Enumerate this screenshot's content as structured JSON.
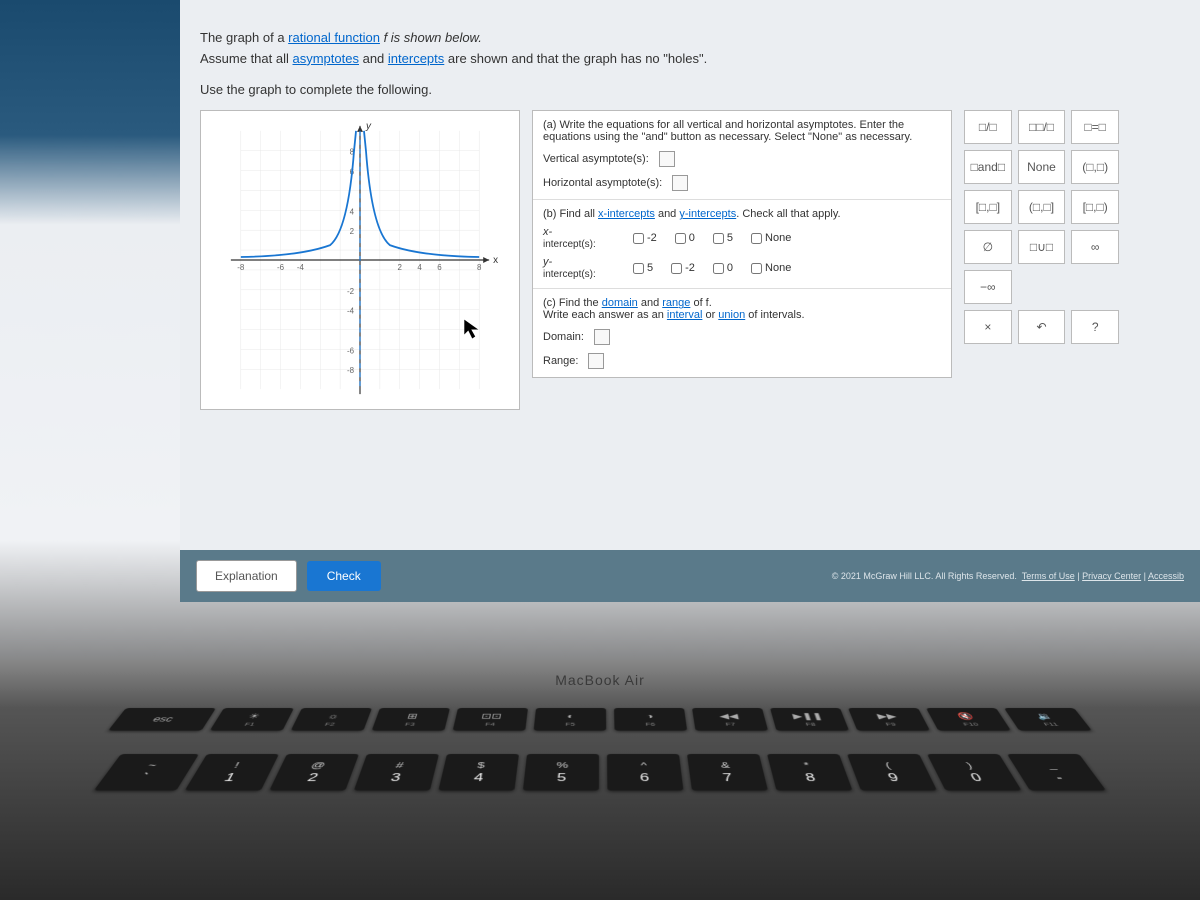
{
  "problem": {
    "line1_pre": "The graph of a ",
    "line1_link": "rational function",
    "line1_post": " f is shown below.",
    "line2_pre": "Assume that all ",
    "line2_link1": "asymptotes",
    "line2_mid": " and ",
    "line2_link2": "intercepts",
    "line2_post": " are shown and that the graph has no \"holes\".",
    "line3": "Use the graph to complete the following."
  },
  "graph": {
    "x_min": -8,
    "x_max": 8,
    "y_min": -8,
    "y_max": 8,
    "x_ticks": [
      -8,
      -6,
      -4,
      -2,
      2,
      4,
      6,
      8
    ],
    "y_ticks": [
      -8,
      -6,
      -4,
      -2,
      2,
      4,
      6,
      8
    ],
    "vertical_asymptote_x": 0,
    "horizontal_asymptote_y": 0,
    "curve_color": "#1976d2",
    "asymptote_color": "#1976d2",
    "grid_color": "#e0e0e0",
    "axis_color": "#333"
  },
  "questions": {
    "a": {
      "prompt": "Write the equations for all vertical and horizontal asymptotes. Enter the equations using the \"and\" button as necessary. Select \"None\" as necessary.",
      "vert_label": "Vertical asymptote(s):",
      "horiz_label": "Horizontal asymptote(s):"
    },
    "b": {
      "prompt_pre": "Find all ",
      "prompt_link1": "x-intercepts",
      "prompt_mid": " and ",
      "prompt_link2": "y-intercepts",
      "prompt_post": ". Check all that apply.",
      "x_label_top": "x-",
      "x_label_bot": "intercept(s):",
      "y_label_top": "y-",
      "y_label_bot": "intercept(s):",
      "x_opts": [
        "-2",
        "0",
        "5",
        "None"
      ],
      "y_opts": [
        "5",
        "-2",
        "0",
        "None"
      ]
    },
    "c": {
      "prompt_pre": "Find the ",
      "prompt_link1": "domain",
      "prompt_mid1": " and ",
      "prompt_link2": "range",
      "prompt_mid2": " of f.",
      "prompt_line2_pre": "Write each answer as an ",
      "prompt_link3": "interval",
      "prompt_mid3": " or ",
      "prompt_link4": "union",
      "prompt_post": " of intervals.",
      "domain_label": "Domain:",
      "range_label": "Range:"
    }
  },
  "palette": {
    "items": [
      {
        "label": "□/□",
        "name": "fraction"
      },
      {
        "label": "□□/□",
        "name": "mixed-fraction"
      },
      {
        "label": "□=□",
        "name": "equation"
      },
      {
        "label": "□and□",
        "name": "and"
      },
      {
        "label": "None",
        "name": "none"
      },
      {
        "label": "(□,□)",
        "name": "open-interval"
      },
      {
        "label": "[□,□]",
        "name": "closed-interval"
      },
      {
        "label": "(□,□]",
        "name": "half-open-right"
      },
      {
        "label": "[□,□)",
        "name": "half-open-left"
      },
      {
        "label": "∅",
        "name": "empty-set"
      },
      {
        "label": "□∪□",
        "name": "union"
      },
      {
        "label": "∞",
        "name": "infinity"
      },
      {
        "label": "−∞",
        "name": "neg-infinity"
      },
      {
        "label": "",
        "name": "blank1"
      },
      {
        "label": "",
        "name": "blank2"
      },
      {
        "label": "×",
        "name": "clear"
      },
      {
        "label": "↶",
        "name": "undo"
      },
      {
        "label": "?",
        "name": "help"
      }
    ]
  },
  "footer": {
    "explanation": "Explanation",
    "check": "Check",
    "copyright": "© 2021 McGraw Hill LLC. All Rights Reserved.",
    "link1": "Terms of Use",
    "link2": "Privacy Center",
    "link3": "Accessib"
  },
  "keyboard": {
    "macbook": "MacBook Air",
    "fn": [
      {
        "icon": "esc",
        "lbl": ""
      },
      {
        "icon": "☀",
        "lbl": "F1"
      },
      {
        "icon": "☼",
        "lbl": "F2"
      },
      {
        "icon": "⊞",
        "lbl": "F3"
      },
      {
        "icon": "⊡⊡",
        "lbl": "F4"
      },
      {
        "icon": "◐",
        "lbl": "F5"
      },
      {
        "icon": "◑",
        "lbl": "F6"
      },
      {
        "icon": "◀◀",
        "lbl": "F7"
      },
      {
        "icon": "▶❚❚",
        "lbl": "F8"
      },
      {
        "icon": "▶▶",
        "lbl": "F9"
      },
      {
        "icon": "🔇",
        "lbl": "F10"
      },
      {
        "icon": "🔉",
        "lbl": "F11"
      }
    ],
    "num": [
      {
        "sym": "~",
        "num": "`"
      },
      {
        "sym": "!",
        "num": "1"
      },
      {
        "sym": "@",
        "num": "2"
      },
      {
        "sym": "#",
        "num": "3"
      },
      {
        "sym": "$",
        "num": "4"
      },
      {
        "sym": "%",
        "num": "5"
      },
      {
        "sym": "^",
        "num": "6"
      },
      {
        "sym": "&",
        "num": "7"
      },
      {
        "sym": "*",
        "num": "8"
      },
      {
        "sym": "(",
        "num": "9"
      },
      {
        "sym": ")",
        "num": "0"
      },
      {
        "sym": "_",
        "num": "-"
      }
    ]
  }
}
